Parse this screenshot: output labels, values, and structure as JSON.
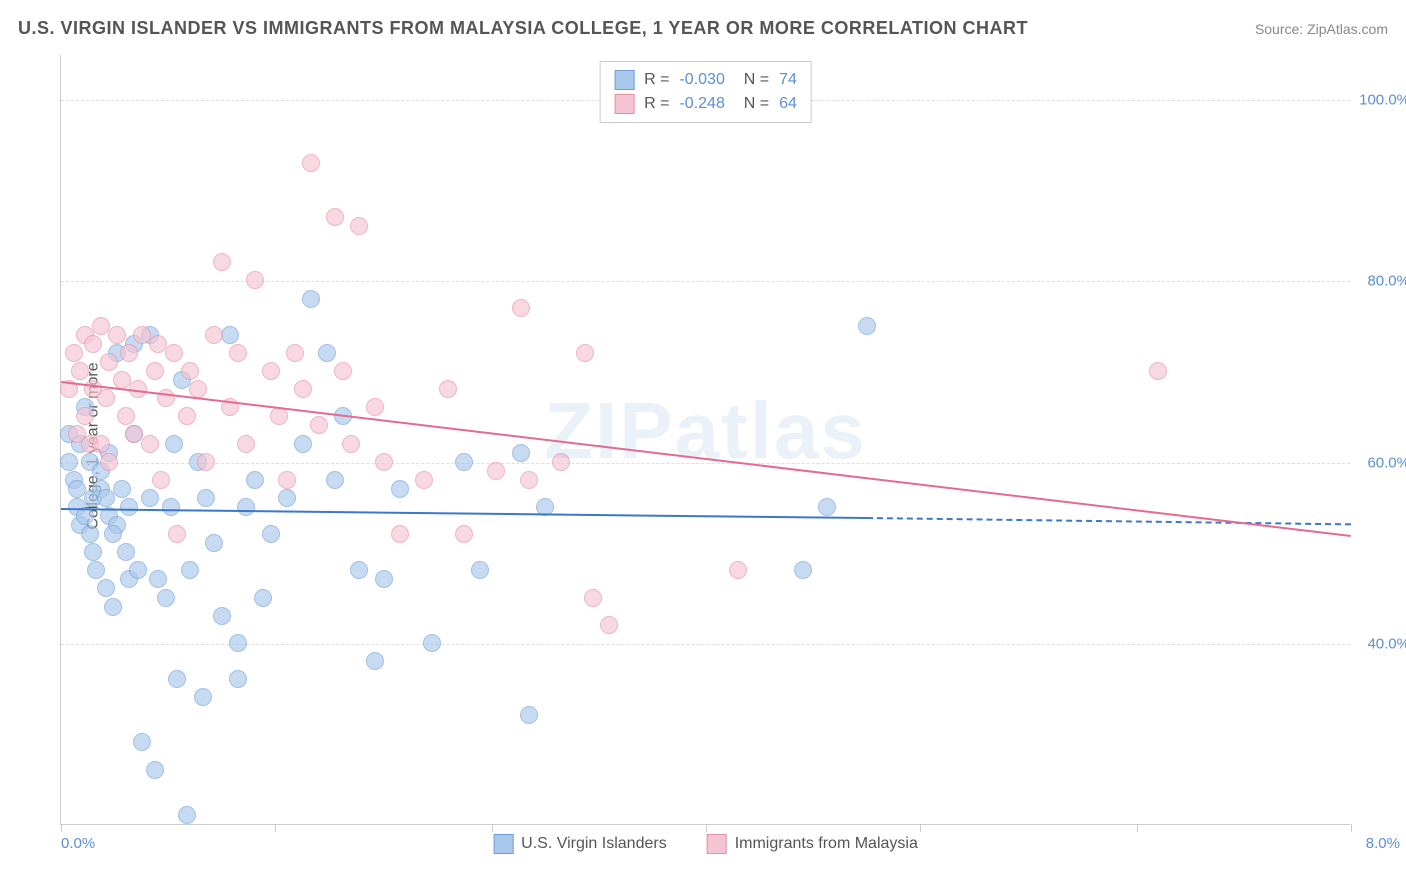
{
  "header": {
    "title": "U.S. VIRGIN ISLANDER VS IMMIGRANTS FROM MALAYSIA COLLEGE, 1 YEAR OR MORE CORRELATION CHART",
    "source": "Source: ZipAtlas.com"
  },
  "chart": {
    "type": "scatter",
    "ylabel": "College, 1 year or more",
    "watermark": "ZIPatlas",
    "xlim": [
      0.0,
      8.0
    ],
    "ylim": [
      20.0,
      105.0
    ],
    "xlim_labels": [
      "0.0%",
      "8.0%"
    ],
    "xtick_positions": [
      0.0,
      1.33,
      2.67,
      4.0,
      5.33,
      6.67,
      8.0
    ],
    "ytick_positions": [
      40.0,
      60.0,
      80.0,
      100.0
    ],
    "ytick_labels": [
      "40.0%",
      "60.0%",
      "80.0%",
      "100.0%"
    ],
    "grid_color": "#dddddd",
    "background_color": "#ffffff",
    "axis_color": "#cccccc",
    "tick_label_color": "#5b8fd6",
    "series": [
      {
        "name": "U.S. Virgin Islanders",
        "color_fill": "#a9c8ec",
        "color_stroke": "#6f9fd8",
        "r_value": "-0.030",
        "n_value": "74",
        "marker_radius": 9,
        "trend": {
          "x1": 0.0,
          "y1": 55.0,
          "x2": 5.0,
          "y2": 54.0,
          "solid_color": "#3b78c9",
          "x3": 8.0,
          "y3": 53.3
        },
        "points": [
          [
            0.05,
            63
          ],
          [
            0.05,
            60
          ],
          [
            0.08,
            58
          ],
          [
            0.1,
            57
          ],
          [
            0.1,
            55
          ],
          [
            0.12,
            62
          ],
          [
            0.12,
            53
          ],
          [
            0.15,
            54
          ],
          [
            0.18,
            60
          ],
          [
            0.18,
            52
          ],
          [
            0.2,
            56
          ],
          [
            0.2,
            50
          ],
          [
            0.22,
            48
          ],
          [
            0.25,
            59
          ],
          [
            0.25,
            57
          ],
          [
            0.28,
            56
          ],
          [
            0.28,
            46
          ],
          [
            0.3,
            61
          ],
          [
            0.3,
            54
          ],
          [
            0.32,
            44
          ],
          [
            0.35,
            72
          ],
          [
            0.35,
            53
          ],
          [
            0.38,
            57
          ],
          [
            0.4,
            50
          ],
          [
            0.42,
            55
          ],
          [
            0.42,
            47
          ],
          [
            0.45,
            73
          ],
          [
            0.45,
            63
          ],
          [
            0.48,
            48
          ],
          [
            0.5,
            29
          ],
          [
            0.55,
            74
          ],
          [
            0.55,
            56
          ],
          [
            0.58,
            26
          ],
          [
            0.6,
            47
          ],
          [
            0.65,
            45
          ],
          [
            0.68,
            55
          ],
          [
            0.7,
            62
          ],
          [
            0.72,
            36
          ],
          [
            0.75,
            69
          ],
          [
            0.78,
            21
          ],
          [
            0.8,
            48
          ],
          [
            0.85,
            60
          ],
          [
            0.88,
            34
          ],
          [
            0.9,
            56
          ],
          [
            0.95,
            51
          ],
          [
            1.0,
            43
          ],
          [
            1.05,
            74
          ],
          [
            1.1,
            40
          ],
          [
            1.1,
            36
          ],
          [
            1.15,
            55
          ],
          [
            1.2,
            58
          ],
          [
            1.25,
            45
          ],
          [
            1.3,
            52
          ],
          [
            1.4,
            56
          ],
          [
            1.5,
            62
          ],
          [
            1.55,
            78
          ],
          [
            1.65,
            72
          ],
          [
            1.7,
            58
          ],
          [
            1.75,
            65
          ],
          [
            1.85,
            48
          ],
          [
            1.95,
            38
          ],
          [
            2.0,
            47
          ],
          [
            2.1,
            57
          ],
          [
            2.3,
            40
          ],
          [
            2.5,
            60
          ],
          [
            2.6,
            48
          ],
          [
            2.85,
            61
          ],
          [
            2.9,
            32
          ],
          [
            3.0,
            55
          ],
          [
            4.6,
            48
          ],
          [
            4.75,
            55
          ],
          [
            5.0,
            75
          ],
          [
            0.15,
            66
          ],
          [
            0.32,
            52
          ]
        ]
      },
      {
        "name": "Immigrants from Malaysia",
        "color_fill": "#f5c4d2",
        "color_stroke": "#e88fa9",
        "r_value": "-0.248",
        "n_value": "64",
        "marker_radius": 9,
        "trend": {
          "x1": 0.0,
          "y1": 69.0,
          "x2": 8.0,
          "y2": 52.0,
          "solid_color": "#e46a8f"
        },
        "points": [
          [
            0.05,
            68
          ],
          [
            0.08,
            72
          ],
          [
            0.1,
            63
          ],
          [
            0.12,
            70
          ],
          [
            0.15,
            74
          ],
          [
            0.15,
            65
          ],
          [
            0.18,
            62
          ],
          [
            0.2,
            73
          ],
          [
            0.2,
            68
          ],
          [
            0.25,
            75
          ],
          [
            0.25,
            62
          ],
          [
            0.28,
            67
          ],
          [
            0.3,
            71
          ],
          [
            0.3,
            60
          ],
          [
            0.35,
            74
          ],
          [
            0.38,
            69
          ],
          [
            0.4,
            65
          ],
          [
            0.42,
            72
          ],
          [
            0.45,
            63
          ],
          [
            0.48,
            68
          ],
          [
            0.5,
            74
          ],
          [
            0.55,
            62
          ],
          [
            0.58,
            70
          ],
          [
            0.6,
            73
          ],
          [
            0.62,
            58
          ],
          [
            0.65,
            67
          ],
          [
            0.7,
            72
          ],
          [
            0.72,
            52
          ],
          [
            0.78,
            65
          ],
          [
            0.8,
            70
          ],
          [
            0.85,
            68
          ],
          [
            0.9,
            60
          ],
          [
            0.95,
            74
          ],
          [
            1.0,
            82
          ],
          [
            1.05,
            66
          ],
          [
            1.1,
            72
          ],
          [
            1.15,
            62
          ],
          [
            1.2,
            80
          ],
          [
            1.3,
            70
          ],
          [
            1.35,
            65
          ],
          [
            1.4,
            58
          ],
          [
            1.45,
            72
          ],
          [
            1.5,
            68
          ],
          [
            1.55,
            93
          ],
          [
            1.6,
            64
          ],
          [
            1.7,
            87
          ],
          [
            1.75,
            70
          ],
          [
            1.8,
            62
          ],
          [
            1.85,
            86
          ],
          [
            1.95,
            66
          ],
          [
            2.0,
            60
          ],
          [
            2.1,
            52
          ],
          [
            2.25,
            58
          ],
          [
            2.4,
            68
          ],
          [
            2.5,
            52
          ],
          [
            2.7,
            59
          ],
          [
            2.85,
            77
          ],
          [
            2.9,
            58
          ],
          [
            3.1,
            60
          ],
          [
            3.25,
            72
          ],
          [
            3.3,
            45
          ],
          [
            3.4,
            42
          ],
          [
            4.2,
            48
          ],
          [
            6.8,
            70
          ]
        ]
      }
    ],
    "legend_bottom": [
      {
        "label": "U.S. Virgin Islanders",
        "fill": "#a9c8ec",
        "stroke": "#6f9fd8"
      },
      {
        "label": "Immigrants from Malaysia",
        "fill": "#f5c4d2",
        "stroke": "#e88fa9"
      }
    ]
  }
}
